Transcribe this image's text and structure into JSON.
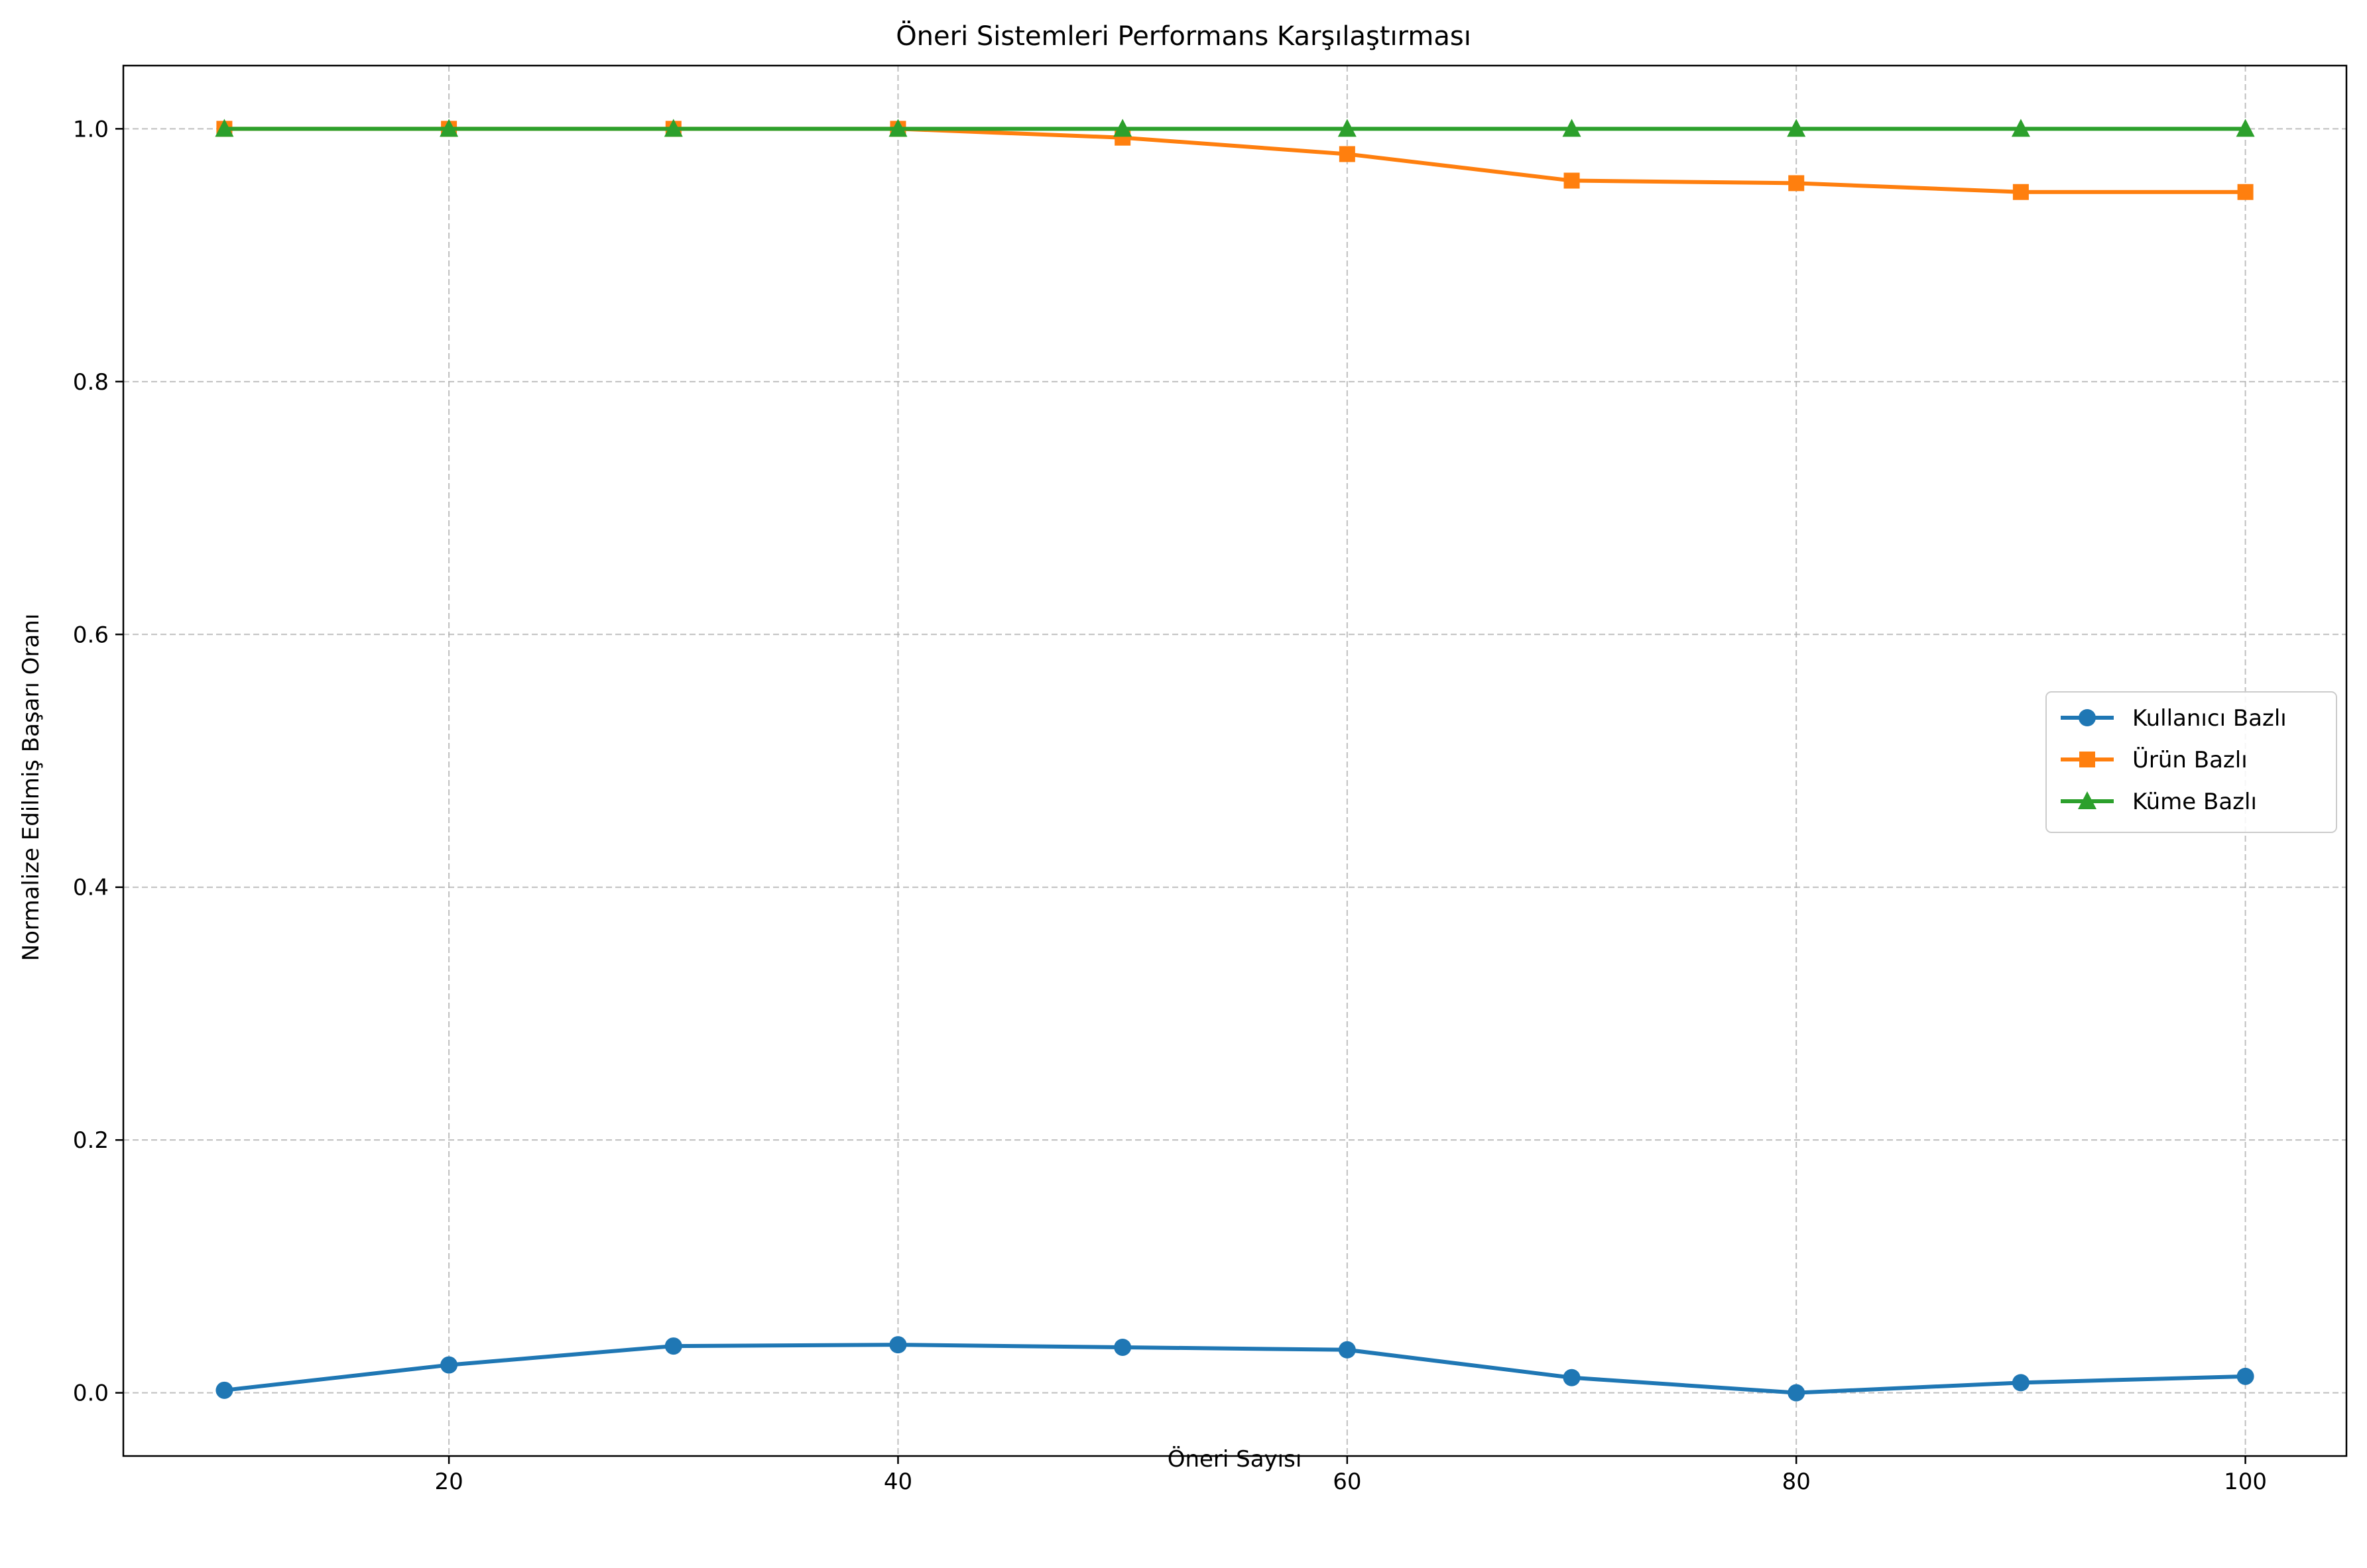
{
  "chart_data": {
    "type": "line",
    "title": "Öneri Sistemleri Performans Karşılaştırması",
    "xlabel": "Öneri Sayısı",
    "ylabel": "Normalize Edilmiş Başarı Oranı",
    "x": [
      10,
      20,
      30,
      40,
      50,
      60,
      70,
      80,
      90,
      100
    ],
    "xlim": [
      5.5,
      104.5
    ],
    "ylim": [
      -0.05,
      1.05
    ],
    "xticks": [
      20,
      40,
      60,
      80,
      100
    ],
    "yticks": [
      0.0,
      0.2,
      0.4,
      0.6,
      0.8,
      1.0
    ],
    "xtick_labels": [
      "20",
      "40",
      "60",
      "80",
      "100"
    ],
    "ytick_labels": [
      "0.0",
      "0.2",
      "0.4",
      "0.6",
      "0.8",
      "1.0"
    ],
    "grid": true,
    "legend_position": "center-right",
    "series": [
      {
        "name": "Kullanıcı Bazlı",
        "color": "#1f77b4",
        "marker": "circle",
        "values": [
          0.002,
          0.022,
          0.037,
          0.038,
          0.036,
          0.034,
          0.012,
          0.0,
          0.008,
          0.013
        ]
      },
      {
        "name": "Ürün Bazlı",
        "color": "#ff7f0e",
        "marker": "square",
        "values": [
          1.0,
          1.0,
          1.0,
          1.0,
          0.993,
          0.98,
          0.959,
          0.957,
          0.95,
          0.95
        ]
      },
      {
        "name": "Küme Bazlı",
        "color": "#2ca02c",
        "marker": "triangle",
        "values": [
          1.0,
          1.0,
          1.0,
          1.0,
          1.0,
          1.0,
          1.0,
          1.0,
          1.0,
          1.0
        ]
      }
    ]
  }
}
